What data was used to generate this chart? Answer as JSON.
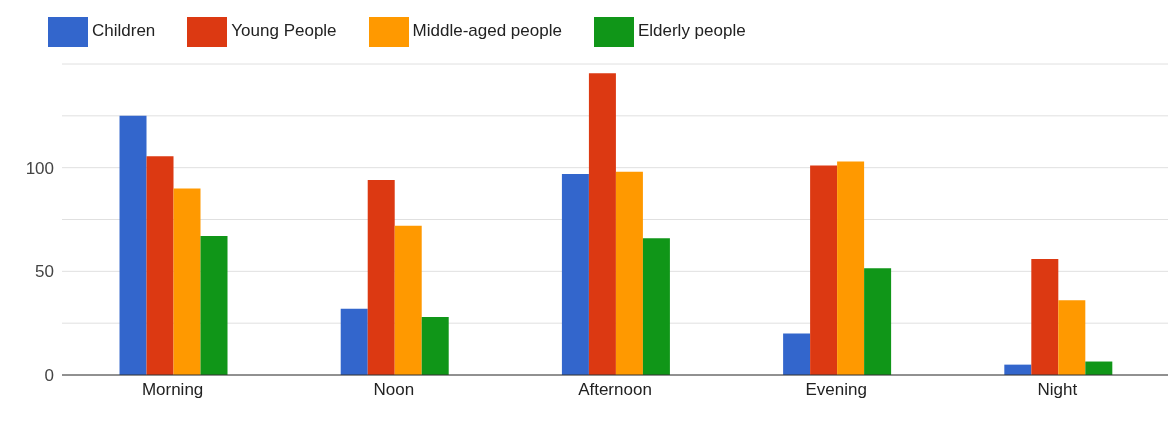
{
  "chart_data": {
    "type": "bar",
    "categories": [
      "Morning",
      "Noon",
      "Afternoon",
      "Evening",
      "Night"
    ],
    "series": [
      {
        "name": "Children",
        "color": "#3366cc",
        "values": [
          125,
          32,
          97,
          20,
          5
        ]
      },
      {
        "name": "Young People",
        "color": "#dc3912",
        "values": [
          105.5,
          94,
          145.5,
          101,
          56
        ]
      },
      {
        "name": "Middle-aged people",
        "color": "#ff9900",
        "values": [
          90,
          72,
          98,
          103,
          36
        ]
      },
      {
        "name": "Elderly people",
        "color": "#109618",
        "values": [
          67,
          28,
          66,
          51.5,
          6.5
        ]
      }
    ],
    "ylim": [
      0,
      150
    ],
    "yticks": [
      0,
      {
        "value": 25,
        "label": null
      },
      50,
      {
        "value": 75,
        "label": null
      },
      100,
      {
        "value": 125,
        "label": null
      },
      {
        "value": 150,
        "label": null
      }
    ],
    "grid": "y",
    "legend": "top left"
  }
}
